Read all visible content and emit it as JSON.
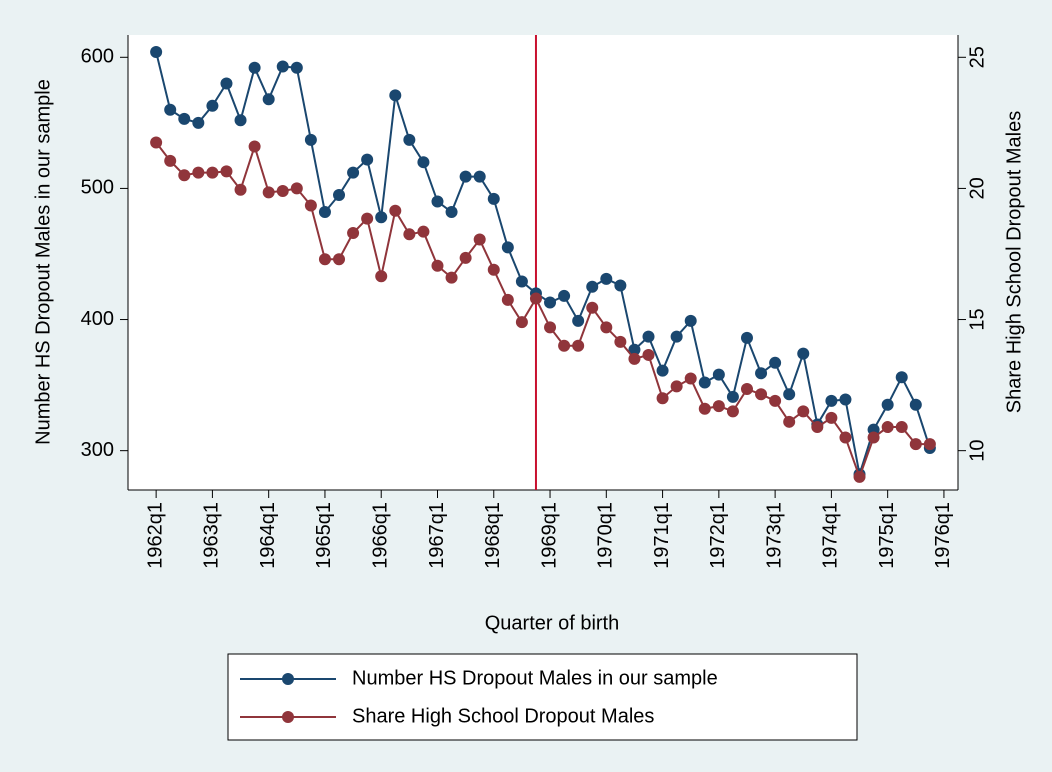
{
  "chart_data": {
    "type": "line",
    "xlabel": "Quarter of birth",
    "ylabel": "Number HS Dropout Males in our sample",
    "y2label": "Share High School Dropout Males",
    "x": [
      "1962q1",
      "1962q2",
      "1962q3",
      "1962q4",
      "1963q1",
      "1963q2",
      "1963q3",
      "1963q4",
      "1964q1",
      "1964q2",
      "1964q3",
      "1964q4",
      "1965q1",
      "1965q2",
      "1965q3",
      "1965q4",
      "1966q1",
      "1966q2",
      "1966q3",
      "1966q4",
      "1967q1",
      "1967q2",
      "1967q3",
      "1967q4",
      "1968q1",
      "1968q2",
      "1968q3",
      "1968q4",
      "1969q1",
      "1969q2",
      "1969q3",
      "1969q4",
      "1970q1",
      "1970q2",
      "1970q3",
      "1970q4",
      "1971q1",
      "1971q2",
      "1971q3",
      "1971q4",
      "1972q1",
      "1972q2",
      "1972q3",
      "1972q4",
      "1973q1",
      "1973q2",
      "1973q3",
      "1973q4",
      "1974q1",
      "1974q2",
      "1974q3",
      "1974q4",
      "1975q1",
      "1975q2",
      "1975q3",
      "1975q4"
    ],
    "xlim": [
      "1961q3",
      "1976q2"
    ],
    "xticks": [
      "1962q1",
      "1963q1",
      "1964q1",
      "1965q1",
      "1966q1",
      "1967q1",
      "1968q1",
      "1969q1",
      "1970q1",
      "1971q1",
      "1972q1",
      "1973q1",
      "1974q1",
      "1975q1",
      "1976q1"
    ],
    "ylim": [
      270,
      617
    ],
    "yticks": [
      300,
      400,
      500,
      600
    ],
    "y2lim": [
      8.5,
      25.85
    ],
    "y2ticks": [
      10,
      15,
      20,
      25
    ],
    "grid": false,
    "legend": "bottom",
    "reference_line": {
      "x": "1968q4",
      "color": "#c8102e"
    },
    "series": [
      {
        "name": "Number HS Dropout Males in our sample",
        "color": "#1a476f",
        "values": [
          604,
          560,
          553,
          550,
          563,
          580,
          552,
          592,
          568,
          593,
          592,
          537,
          482,
          495,
          512,
          522,
          478,
          571,
          537,
          520,
          490,
          482,
          509,
          509,
          492,
          455,
          429,
          420,
          413,
          418,
          399,
          425,
          431,
          426,
          377,
          387,
          361,
          387,
          399,
          352,
          358,
          341,
          386,
          359,
          367,
          343,
          374,
          320,
          338,
          339,
          282,
          316,
          335,
          356,
          335,
          302
        ]
      },
      {
        "name": "Share High School Dropout Males",
        "color": "#90353b",
        "axis": "y2",
        "values": [
          21.75,
          21.05,
          20.5,
          20.6,
          20.6,
          20.65,
          19.95,
          21.6,
          19.85,
          19.9,
          20.0,
          19.35,
          17.3,
          17.3,
          18.3,
          18.85,
          16.65,
          19.15,
          18.25,
          18.35,
          17.05,
          16.6,
          17.35,
          18.05,
          16.9,
          15.75,
          14.9,
          15.8,
          14.7,
          14.0,
          14.0,
          15.45,
          14.7,
          14.15,
          13.5,
          13.65,
          12.0,
          12.45,
          12.75,
          11.6,
          11.7,
          11.5,
          12.35,
          12.15,
          11.9,
          11.1,
          11.5,
          10.9,
          11.25,
          10.5,
          9.0,
          10.5,
          10.9,
          10.9,
          10.25,
          10.25
        ]
      }
    ]
  }
}
